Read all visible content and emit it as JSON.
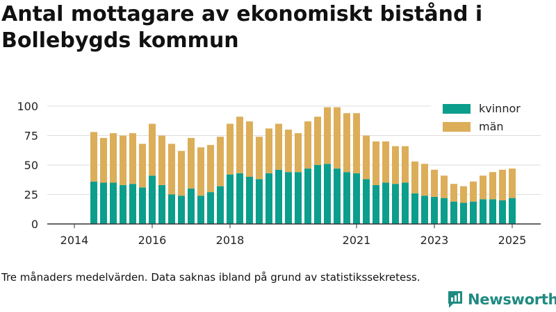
{
  "title": "Antal mottagare av ekonomiskt bistånd i Bollebygds kommun",
  "footnote": "Tre månaders medelvärden. Data saknas ibland på grund av statistikssekretess.",
  "logo_text": "Newsworthy",
  "colors": {
    "kvinnor": "#0c9e8c",
    "man": "#dcae59",
    "axis": "#333333",
    "grid": "#dddddd",
    "brand": "#1f8a81"
  },
  "chart_data": {
    "type": "bar",
    "stacked": true,
    "legend_position": "top-right",
    "grid": "horizontal",
    "ylim": [
      0,
      100
    ],
    "yticks": [
      0,
      25,
      50,
      75,
      100
    ],
    "x_tick_labels": [
      "2014",
      "2016",
      "2018",
      "2021",
      "2023",
      "2025"
    ],
    "x_tick_indices": [
      -2,
      6,
      14,
      27,
      35,
      43
    ],
    "series": [
      {
        "name": "kvinnor",
        "values": [
          36,
          35,
          35,
          33,
          34,
          31,
          41,
          33,
          25,
          24,
          30,
          24,
          27,
          32,
          42,
          43,
          40,
          38,
          43,
          46,
          44,
          44,
          47,
          50,
          51,
          47,
          44,
          43,
          38,
          33,
          35,
          34,
          35,
          26,
          24,
          23,
          22,
          19,
          18,
          19,
          21,
          21,
          20,
          22
        ]
      },
      {
        "name": "män",
        "values": [
          42,
          38,
          42,
          42,
          43,
          37,
          44,
          42,
          43,
          38,
          43,
          41,
          40,
          42,
          43,
          48,
          47,
          36,
          38,
          39,
          36,
          33,
          40,
          41,
          48,
          52,
          50,
          51,
          37,
          37,
          35,
          32,
          31,
          27,
          27,
          23,
          19,
          15,
          14,
          17,
          20,
          23,
          26,
          25
        ]
      }
    ]
  }
}
